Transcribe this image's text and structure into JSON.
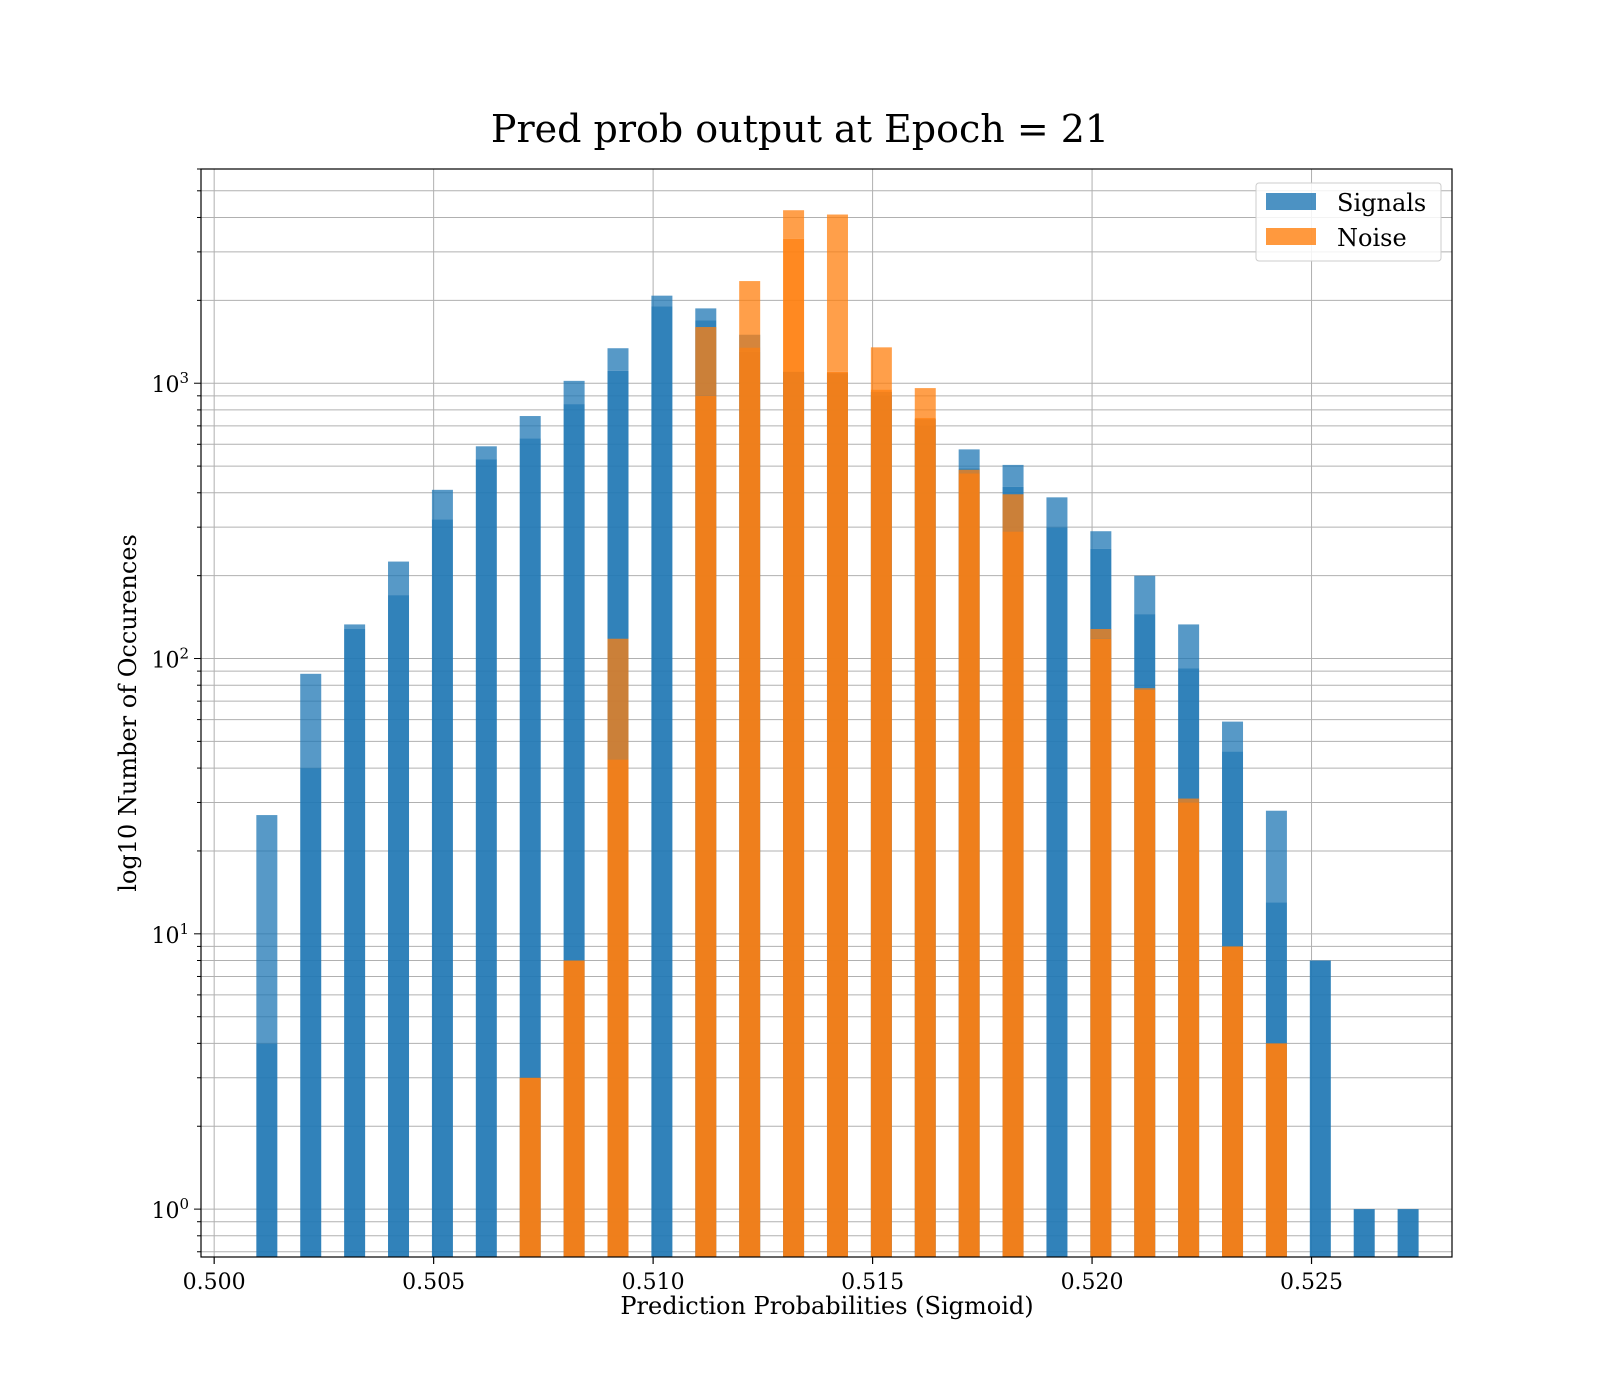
{
  "chart_data": {
    "type": "bar",
    "title": "Pred prob output at Epoch = 21",
    "xlabel": "Prediction Probabilities (Sigmoid)",
    "ylabel": "log10 Number of Occurences",
    "yscale": "log",
    "xlim": [
      0.4997,
      0.5282
    ],
    "ylim": [
      0.67,
      6000
    ],
    "x_ticks": [
      "0.500",
      "0.505",
      "0.510",
      "0.515",
      "0.520",
      "0.525"
    ],
    "x_tick_values": [
      0.5,
      0.505,
      0.51,
      0.515,
      0.52,
      0.525
    ],
    "y_ticks": [
      {
        "base": "10",
        "exp": "0",
        "value": 1
      },
      {
        "base": "10",
        "exp": "1",
        "value": 10
      },
      {
        "base": "10",
        "exp": "2",
        "value": 100
      },
      {
        "base": "10",
        "exp": "3",
        "value": 1000
      }
    ],
    "grid": true,
    "legend_placement": "top-right",
    "series": [
      {
        "name": "Signals",
        "color": "#1f77b4",
        "x": [
          0.5012,
          0.5022,
          0.5032,
          0.5042,
          0.5052,
          0.5062,
          0.5072,
          0.5082,
          0.5092,
          0.5102,
          0.5112,
          0.5122,
          0.5132,
          0.5142,
          0.5152,
          0.5162,
          0.5172,
          0.5182,
          0.5192,
          0.5202,
          0.5212,
          0.5222,
          0.5232,
          0.5242,
          0.5252,
          0.5262,
          0.5272
        ],
        "values": [
          27,
          88,
          133,
          225,
          410,
          590,
          760,
          1020,
          1340,
          2080,
          1870,
          1500,
          1050,
          1090,
          930,
          740,
          575,
          505,
          385,
          290,
          200,
          133,
          59,
          28,
          8,
          1,
          1
        ],
        "values_alt": [
          4,
          40,
          128,
          170,
          320,
          530,
          630,
          840,
          1110,
          1900,
          1690,
          1300,
          1100,
          1080,
          900,
          700,
          490,
          420,
          300,
          250,
          145,
          92,
          46,
          13,
          8,
          1,
          1
        ]
      },
      {
        "name": "Noise",
        "color": "#ff7f0e",
        "x": [
          0.5072,
          0.5082,
          0.5092,
          0.5112,
          0.5122,
          0.5132,
          0.5142,
          0.5152,
          0.5162,
          0.5172,
          0.5182,
          0.5202,
          0.5212,
          0.5222,
          0.5232,
          0.5242
        ],
        "values": [
          3,
          8,
          118,
          1600,
          2350,
          4250,
          4100,
          1350,
          960,
          485,
          395,
          128,
          78,
          31,
          9,
          4
        ],
        "values_alt": [
          3,
          8,
          43,
          900,
          1350,
          3350,
          1100,
          950,
          750,
          470,
          290,
          118,
          77,
          30,
          9,
          4
        ]
      }
    ]
  }
}
